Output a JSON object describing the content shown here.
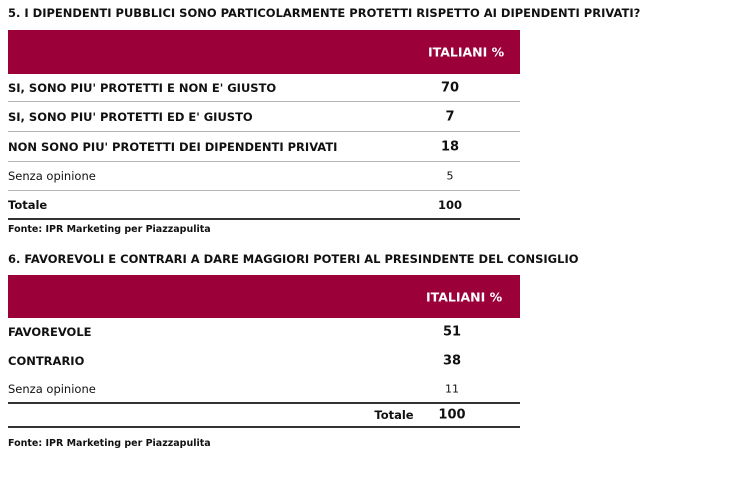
{
  "q5": {
    "title": "5. I DIPENDENTI PUBBLICI SONO PARTICOLARMENTE PROTETTI RISPETTO AI DIPENDENTI PRIVATI?",
    "header": "ITALIANI  %",
    "rows": [
      {
        "label": "SI, SONO PIU' PROTETTI E NON E' GIUSTO",
        "value": "70"
      },
      {
        "label": "SI, SONO PIU' PROTETTI ED E' GIUSTO",
        "value": "7"
      },
      {
        "label": "NON SONO PIU' PROTETTI DEI DIPENDENTI PRIVATI",
        "value": "18"
      },
      {
        "label": "Senza opinione",
        "value": "5"
      }
    ],
    "total_label": "Totale",
    "total_value": "100",
    "source": "Fonte: IPR Marketing per Piazzapulita"
  },
  "q6": {
    "title": "6. FAVOREVOLI E CONTRARI A DARE MAGGIORI POTERI AL PRESINDENTE DEL CONSIGLIO",
    "header": "ITALIANI %",
    "rows": [
      {
        "label": "FAVOREVOLE",
        "value": "51"
      },
      {
        "label": "CONTRARIO",
        "value": "38"
      },
      {
        "label": "Senza opinione",
        "value": "11"
      }
    ],
    "total_label": "Totale",
    "total_value": "100",
    "source": "Fonte: IPR Marketing per Piazzapulita"
  }
}
